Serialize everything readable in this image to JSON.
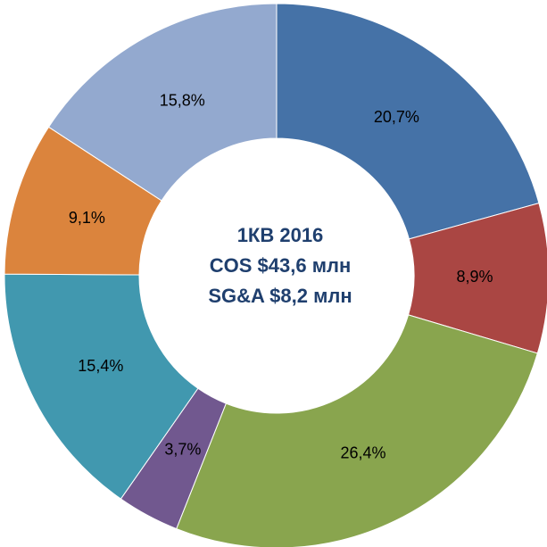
{
  "chart_data": {
    "type": "donut",
    "annotations": [
      "1КВ 2016",
      "COS $43,6 млн",
      "SG&A $8,2 млн"
    ],
    "values": [
      20.7,
      8.9,
      26.4,
      3.7,
      15.4,
      9.1,
      15.8
    ],
    "value_labels": [
      "20,7%",
      "8,9%",
      "26,4%",
      "3,7%",
      "15,4%",
      "9,1%",
      "15,8%"
    ],
    "colors": [
      "#4572a7",
      "#aa4643",
      "#89a54e",
      "#71588f",
      "#4198af",
      "#db843d",
      "#93a9cf"
    ]
  }
}
